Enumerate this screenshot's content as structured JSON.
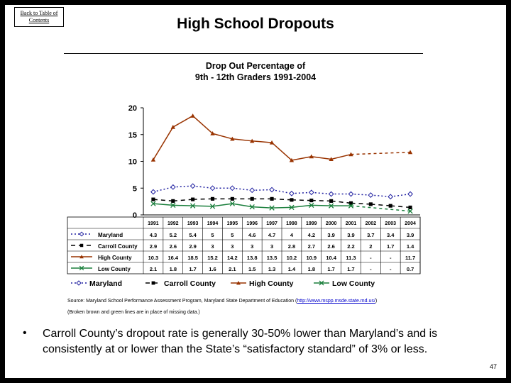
{
  "back_link": "Back to Table of Contents",
  "slide_title": "High School Dropouts",
  "source_prefix": "Source: Maryland School Performance Assessment Program, Maryland State Department of Education (",
  "source_url": "http://www.mspp.msde.state.md.us/",
  "source_suffix": ")",
  "note": "(Broken brown and green lines are in place of missing data.)",
  "bullet": "•",
  "bullet_text": "Carroll County’s dropout rate is generally 30-50% lower than Maryland’s and is consistently at or lower than the State’s “satisfactory standard” of 3% or less.",
  "page_number": "47",
  "chart_data": {
    "type": "line",
    "title": "Drop Out Percentage of 9th - 12th Graders 1991-2004",
    "title_lines": [
      "Drop Out Percentage of",
      "9th - 12th Graders 1991-2004"
    ],
    "categories": [
      "1991",
      "1992",
      "1993",
      "1994",
      "1995",
      "1996",
      "1997",
      "1998",
      "1999",
      "2000",
      "2001",
      "2002",
      "2003",
      "2004"
    ],
    "ylim": [
      0,
      20
    ],
    "yticks": [
      "0",
      "5",
      "10",
      "15",
      "20"
    ],
    "grid": false,
    "legend": "bottom",
    "series": [
      {
        "name": "Maryland",
        "color": "#1f1fa0",
        "marker": "diamond",
        "dash": "2,3",
        "values": [
          4.3,
          5.2,
          5.4,
          5,
          5,
          4.6,
          4.7,
          4,
          4.2,
          3.9,
          3.9,
          3.7,
          3.4,
          3.9
        ],
        "labels": [
          "4.3",
          "5.2",
          "5.4",
          "5",
          "5",
          "4.6",
          "4.7",
          "4",
          "4.2",
          "3.9",
          "3.9",
          "3.7",
          "3.4",
          "3.9"
        ]
      },
      {
        "name": "Carroll County",
        "color": "#000000",
        "marker": "square",
        "dash": "6,5",
        "values": [
          2.9,
          2.6,
          2.9,
          3,
          3,
          3,
          3,
          2.8,
          2.7,
          2.6,
          2.2,
          2,
          1.7,
          1.4
        ],
        "labels": [
          "2.9",
          "2.6",
          "2.9",
          "3",
          "3",
          "3",
          "3",
          "2.8",
          "2.7",
          "2.6",
          "2.2",
          "2",
          "1.7",
          "1.4"
        ]
      },
      {
        "name": "High County",
        "color": "#993300",
        "marker": "triangle",
        "dash": "",
        "values": [
          10.3,
          16.4,
          18.5,
          15.2,
          14.2,
          13.8,
          13.5,
          10.2,
          10.9,
          10.4,
          11.3,
          null,
          null,
          11.7
        ],
        "labels": [
          "10.3",
          "16.4",
          "18.5",
          "15.2",
          "14.2",
          "13.8",
          "13.5",
          "10.2",
          "10.9",
          "10.4",
          "11.3",
          "-",
          "-",
          "11.7"
        ]
      },
      {
        "name": "Low County",
        "color": "#1a7f3c",
        "marker": "star",
        "dash": "",
        "values": [
          2.1,
          1.8,
          1.7,
          1.6,
          2.1,
          1.5,
          1.3,
          1.4,
          1.8,
          1.7,
          1.7,
          null,
          null,
          0.7
        ],
        "labels": [
          "2.1",
          "1.8",
          "1.7",
          "1.6",
          "2.1",
          "1.5",
          "1.3",
          "1.4",
          "1.8",
          "1.7",
          "1.7",
          "-",
          "-",
          "0.7"
        ]
      }
    ]
  }
}
